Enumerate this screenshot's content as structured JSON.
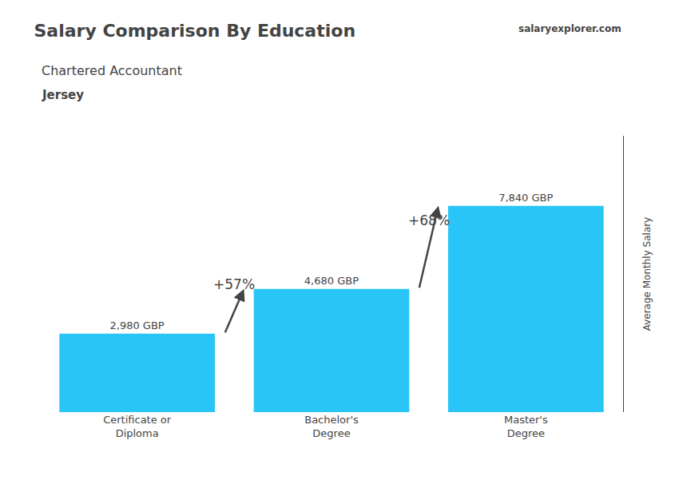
{
  "chart_data": {
    "type": "bar",
    "title": "Salary Comparison By Education",
    "subtitle": "Chartered Accountant",
    "ylabel": "Average Monthly Salary",
    "categories": [
      "Certificate or\nDiploma",
      "Bachelor's\nDegree",
      "Master's\nDegree"
    ],
    "values": [
      2980,
      4680,
      7840
    ],
    "value_labels": [
      "2,980 GBP",
      "4,680 GBP",
      "7,840 GBP"
    ],
    "data_labels": true,
    "color": "#29c5f6",
    "ylim": [
      0,
      10500
    ],
    "tick_labels": "x",
    "grid": false,
    "annotations": [
      "+57%",
      "+68%",
      "Jersey",
      "salaryexplorer.com"
    ]
  }
}
